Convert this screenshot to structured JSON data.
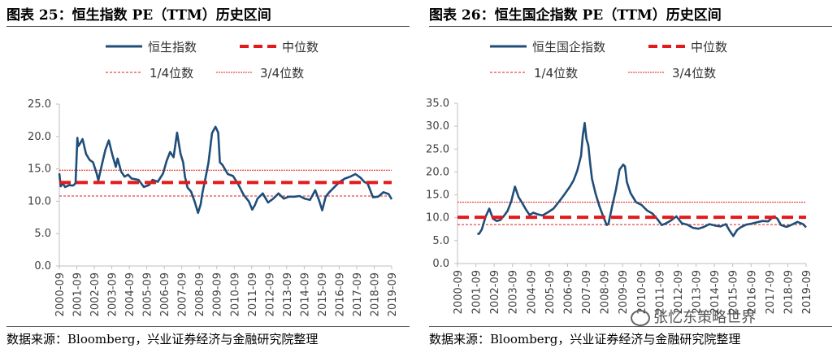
{
  "watermark": "张忆东策略世界",
  "colors": {
    "series": "#1f4e79",
    "median": "#e31a1c",
    "quartile": "#e31a1c",
    "axis": "#bfbfbf"
  },
  "chart_data": [
    {
      "type": "line",
      "title": "图表 25：恒生指数 PE（TTM）历史区间",
      "source": "数据来源：Bloomberg，兴业证券经济与金融研究院整理",
      "legend": [
        "恒生指数",
        "中位数",
        "1/4位数",
        "3/4位数"
      ],
      "ylim": [
        0,
        25
      ],
      "yticks": [
        "0.0",
        "5.0",
        "10.0",
        "15.0",
        "20.0",
        "25.0"
      ],
      "xticks": [
        "2000-09",
        "2001-09",
        "2002-09",
        "2003-09",
        "2004-09",
        "2005-09",
        "2006-09",
        "2007-09",
        "2008-09",
        "2009-09",
        "2010-09",
        "2011-09",
        "2012-09",
        "2013-09",
        "2014-09",
        "2015-09",
        "2016-09",
        "2017-09",
        "2018-09",
        "2019-09"
      ],
      "xrange": [
        2000.67,
        2019.67
      ],
      "median": 12.9,
      "q1": 10.8,
      "q3": 14.8,
      "series": [
        {
          "name": "恒生指数",
          "x": [
            2000.67,
            2000.75,
            2000.85,
            2001.0,
            2001.25,
            2001.4,
            2001.5,
            2001.6,
            2001.7,
            2001.75,
            2001.85,
            2002.0,
            2002.2,
            2002.4,
            2002.6,
            2002.8,
            2002.9,
            2003.1,
            2003.3,
            2003.5,
            2003.7,
            2003.9,
            2004.0,
            2004.2,
            2004.4,
            2004.6,
            2004.8,
            2005.0,
            2005.2,
            2005.5,
            2005.8,
            2006.0,
            2006.3,
            2006.6,
            2006.8,
            2007.0,
            2007.2,
            2007.4,
            2007.6,
            2007.75,
            2007.85,
            2008.0,
            2008.2,
            2008.4,
            2008.6,
            2008.75,
            2008.85,
            2009.0,
            2009.2,
            2009.4,
            2009.6,
            2009.75,
            2009.85,
            2010.0,
            2010.3,
            2010.6,
            2010.9,
            2011.2,
            2011.5,
            2011.7,
            2011.85,
            2012.0,
            2012.3,
            2012.6,
            2012.9,
            2013.2,
            2013.5,
            2013.8,
            2014.1,
            2014.4,
            2014.7,
            2015.0,
            2015.3,
            2015.5,
            2015.7,
            2015.9,
            2016.1,
            2016.4,
            2016.7,
            2017.0,
            2017.3,
            2017.6,
            2017.9,
            2018.1,
            2018.3,
            2018.6,
            2018.9,
            2019.2,
            2019.5,
            2019.67
          ],
          "values": [
            14.3,
            12.3,
            12.8,
            12.2,
            12.5,
            12.4,
            12.5,
            12.8,
            19.8,
            18.5,
            18.9,
            19.6,
            17.3,
            16.4,
            16.0,
            14.3,
            13.2,
            15.6,
            17.9,
            19.4,
            17.2,
            15.3,
            16.6,
            14.6,
            13.8,
            14.1,
            13.5,
            13.4,
            13.3,
            12.2,
            12.5,
            13.3,
            13.0,
            14.3,
            16.2,
            17.6,
            16.8,
            20.6,
            17.3,
            16.0,
            13.8,
            12.1,
            11.5,
            10.0,
            8.2,
            9.5,
            11.3,
            13.2,
            16.0,
            20.5,
            21.5,
            20.6,
            16.0,
            15.6,
            14.2,
            13.9,
            12.6,
            11.0,
            10.0,
            8.7,
            9.4,
            10.4,
            11.2,
            9.8,
            10.4,
            11.2,
            10.4,
            10.7,
            10.7,
            10.8,
            10.4,
            10.2,
            11.7,
            10.3,
            8.6,
            10.7,
            11.4,
            12.2,
            13.0,
            13.5,
            13.8,
            14.2,
            13.6,
            13.0,
            12.7,
            10.6,
            10.7,
            11.4,
            11.1,
            10.3
          ]
        }
      ]
    },
    {
      "type": "line",
      "title": "图表 26：恒生国企指数 PE（TTM）历史区间",
      "source": "数据来源：Bloomberg，兴业证券经济与金融研究院整理",
      "legend": [
        "恒生国企指数",
        "中位数",
        "1/4位数",
        "3/4位数"
      ],
      "ylim": [
        0,
        35
      ],
      "yticks": [
        "0.0",
        "5.0",
        "10.0",
        "15.0",
        "20.0",
        "25.0",
        "30.0",
        "35.0"
      ],
      "xticks": [
        "2000-09",
        "2001-09",
        "2002-09",
        "2003-09",
        "2004-09",
        "2005-09",
        "2006-09",
        "2007-09",
        "2008-09",
        "2009-09",
        "2010-09",
        "2011-09",
        "2012-09",
        "2013-09",
        "2014-09",
        "2015-09",
        "2016-09",
        "2017-09",
        "2018-09",
        "2019-09"
      ],
      "xrange": [
        2000.67,
        2019.67
      ],
      "median": 10.1,
      "q1": 8.5,
      "q3": 13.4,
      "series": [
        {
          "name": "恒生国企指数",
          "x": [
            2001.75,
            2001.85,
            2002.0,
            2002.2,
            2002.4,
            2002.6,
            2002.8,
            2003.0,
            2003.2,
            2003.4,
            2003.6,
            2003.7,
            2003.8,
            2004.0,
            2004.2,
            2004.4,
            2004.6,
            2004.8,
            2005.0,
            2005.3,
            2005.6,
            2005.9,
            2006.2,
            2006.5,
            2006.8,
            2007.0,
            2007.2,
            2007.4,
            2007.5,
            2007.6,
            2007.7,
            2007.8,
            2007.9,
            2008.0,
            2008.2,
            2008.4,
            2008.6,
            2008.8,
            2008.9,
            2009.1,
            2009.3,
            2009.5,
            2009.7,
            2009.8,
            2009.9,
            2010.1,
            2010.4,
            2010.7,
            2011.0,
            2011.3,
            2011.6,
            2011.8,
            2012.0,
            2012.3,
            2012.6,
            2012.9,
            2013.2,
            2013.5,
            2013.8,
            2014.1,
            2014.4,
            2014.7,
            2015.0,
            2015.3,
            2015.5,
            2015.7,
            2015.9,
            2016.1,
            2016.4,
            2016.7,
            2017.0,
            2017.3,
            2017.6,
            2017.9,
            2018.1,
            2018.3,
            2018.6,
            2018.9,
            2019.2,
            2019.5,
            2019.67
          ],
          "values": [
            6.5,
            6.5,
            7.5,
            10.2,
            12.0,
            9.8,
            9.3,
            9.5,
            10.4,
            11.5,
            13.6,
            15.2,
            16.8,
            14.5,
            13.2,
            11.8,
            10.6,
            11.1,
            10.8,
            10.5,
            11.2,
            12.0,
            13.5,
            15.1,
            16.8,
            18.2,
            20.3,
            23.5,
            28.0,
            30.7,
            27.2,
            25.8,
            22.0,
            18.5,
            15.2,
            12.6,
            10.4,
            8.4,
            8.7,
            12.5,
            16.1,
            20.5,
            21.6,
            21.2,
            17.8,
            15.4,
            13.4,
            12.8,
            11.6,
            10.9,
            9.5,
            8.4,
            8.7,
            9.4,
            10.3,
            8.8,
            8.5,
            7.8,
            7.6,
            8.0,
            8.6,
            8.3,
            8.1,
            8.6,
            7.2,
            6.0,
            7.3,
            7.9,
            8.5,
            8.7,
            9.0,
            9.3,
            9.2,
            10.3,
            9.8,
            8.4,
            8.0,
            8.5,
            9.1,
            8.6,
            7.9
          ]
        }
      ]
    }
  ]
}
